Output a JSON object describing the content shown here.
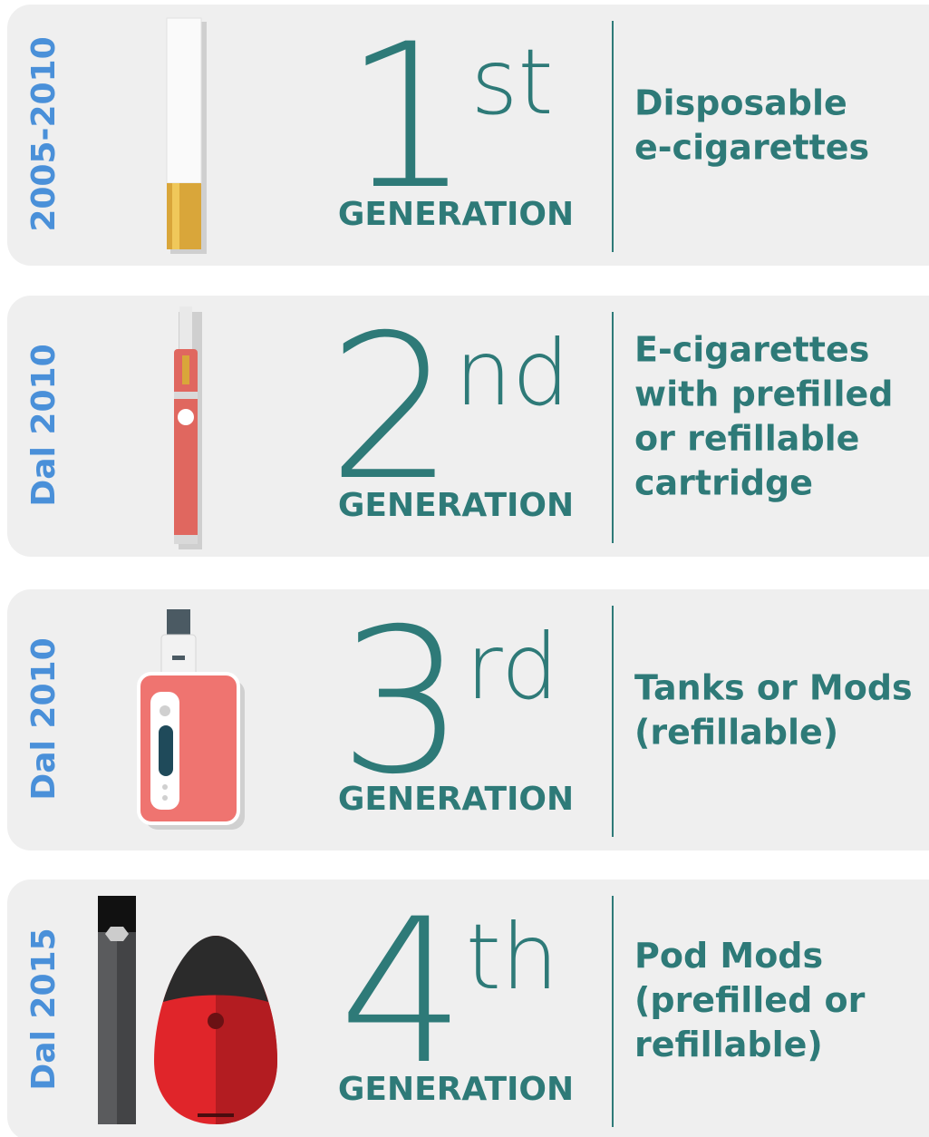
{
  "panels": [
    {
      "period": "2005-2010",
      "number": "1",
      "suffix": "st",
      "generation": "GENERATION",
      "description": [
        "Disposable",
        "e-cigarettes"
      ]
    },
    {
      "period": "Dal 2010",
      "number": "2",
      "suffix": "nd",
      "generation": "GENERATION",
      "description": [
        "E-cigarettes",
        "with prefilled",
        "or refillable",
        "cartridge"
      ]
    },
    {
      "period": "Dal 2010",
      "number": "3",
      "suffix": "rd",
      "generation": "GENERATION",
      "description": [
        "Tanks or Mods",
        "(refillable)"
      ]
    },
    {
      "period": "Dal 2015",
      "number": "4",
      "suffix": "th",
      "generation": "GENERATION",
      "description": [
        "Pod Mods",
        "(prefilled or",
        "refillable)"
      ]
    }
  ]
}
